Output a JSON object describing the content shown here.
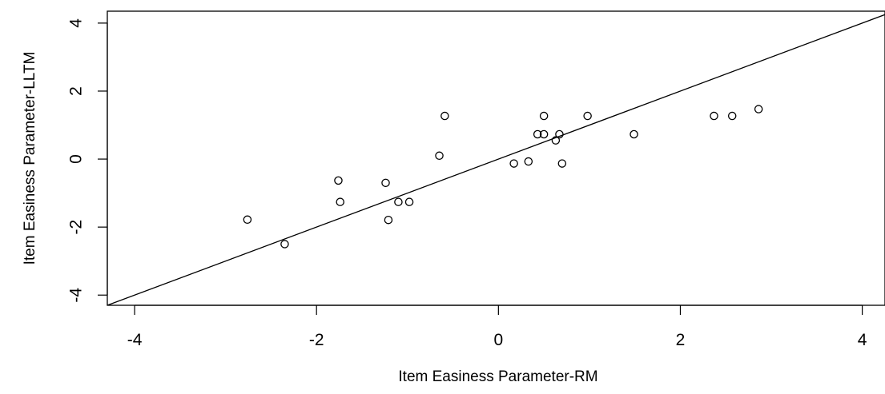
{
  "chart_data": {
    "type": "scatter",
    "title": "",
    "xlabel": "Item Easiness Parameter-RM",
    "ylabel": "Item Easiness Parameter-LLTM",
    "xlim": [
      -4.3,
      4.25
    ],
    "ylim": [
      -4.3,
      4.35
    ],
    "xticks": [
      -4,
      -2,
      0,
      2,
      4
    ],
    "yticks": [
      -4,
      -2,
      0,
      2,
      4
    ],
    "xtick_labels": [
      "-4",
      "-2",
      "0",
      "2",
      "4"
    ],
    "ytick_labels": [
      "-4",
      "-2",
      "0",
      "2",
      "4"
    ],
    "grid": false,
    "legend": "none",
    "point_style": "open-circle",
    "colors": {
      "points": "#000000",
      "line": "#000000",
      "frame": "#000000",
      "background": "#ffffff"
    },
    "reference_line": {
      "type": "identity",
      "slope": 1,
      "intercept": 0
    },
    "points": [
      {
        "x": -2.76,
        "y": -1.78
      },
      {
        "x": -2.35,
        "y": -2.5
      },
      {
        "x": -1.76,
        "y": -0.63
      },
      {
        "x": -1.74,
        "y": -1.26
      },
      {
        "x": -1.24,
        "y": -0.7
      },
      {
        "x": -1.21,
        "y": -1.79
      },
      {
        "x": -1.1,
        "y": -1.26
      },
      {
        "x": -0.98,
        "y": -1.26
      },
      {
        "x": -0.65,
        "y": 0.1
      },
      {
        "x": -0.59,
        "y": 1.27
      },
      {
        "x": 0.17,
        "y": -0.13
      },
      {
        "x": 0.33,
        "y": -0.07
      },
      {
        "x": 0.43,
        "y": 0.73
      },
      {
        "x": 0.5,
        "y": 0.73
      },
      {
        "x": 0.5,
        "y": 1.27
      },
      {
        "x": 0.63,
        "y": 0.55
      },
      {
        "x": 0.67,
        "y": 0.73
      },
      {
        "x": 0.7,
        "y": -0.13
      },
      {
        "x": 0.98,
        "y": 1.27
      },
      {
        "x": 1.49,
        "y": 0.73
      },
      {
        "x": 2.37,
        "y": 1.27
      },
      {
        "x": 2.57,
        "y": 1.27
      },
      {
        "x": 2.86,
        "y": 1.47
      }
    ]
  }
}
